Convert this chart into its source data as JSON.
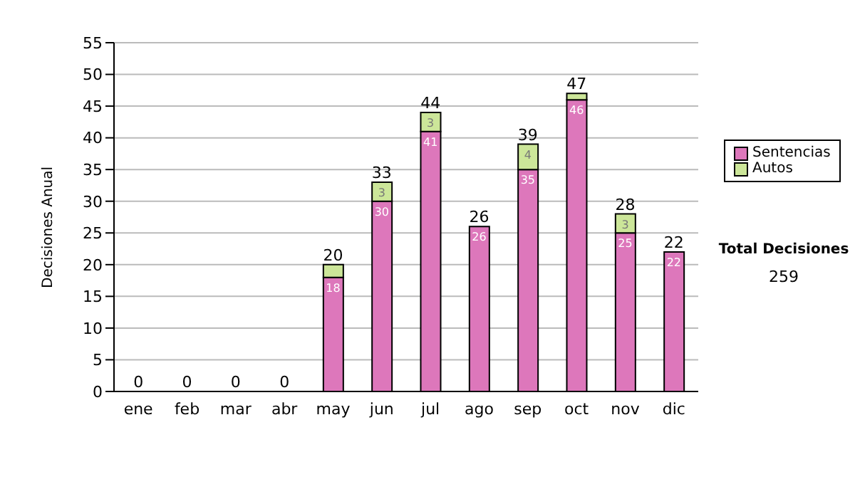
{
  "chart_data": {
    "type": "bar",
    "stacked": true,
    "ylabel": "Decisiones Anual",
    "categories": [
      "ene",
      "feb",
      "mar",
      "abr",
      "may",
      "jun",
      "jul",
      "ago",
      "sep",
      "oct",
      "nov",
      "dic"
    ],
    "series": [
      {
        "name": "Sentencias",
        "color": "#dd77bb",
        "values": [
          0,
          0,
          0,
          0,
          18,
          30,
          41,
          26,
          35,
          46,
          25,
          22
        ],
        "value_labels": [
          null,
          null,
          null,
          null,
          "18",
          "30",
          "41",
          "26",
          "35",
          "46",
          "25",
          "22"
        ]
      },
      {
        "name": "Autos",
        "color": "#cce699",
        "values": [
          0,
          0,
          0,
          0,
          2,
          3,
          3,
          0,
          4,
          1,
          3,
          0
        ],
        "value_labels": [
          null,
          null,
          null,
          null,
          null,
          "3",
          "3",
          null,
          "4",
          null,
          "3",
          null
        ]
      }
    ],
    "totals": [
      "0",
      "0",
      "0",
      "0",
      "20",
      "33",
      "44",
      "26",
      "39",
      "47",
      "28",
      "22"
    ],
    "ylim": [
      0,
      55
    ],
    "yticks": [
      0,
      5,
      10,
      15,
      20,
      25,
      30,
      35,
      40,
      45,
      50,
      55
    ],
    "grid": "y",
    "legend": "right",
    "annotations": [
      "Total Decisiones",
      "259"
    ]
  }
}
